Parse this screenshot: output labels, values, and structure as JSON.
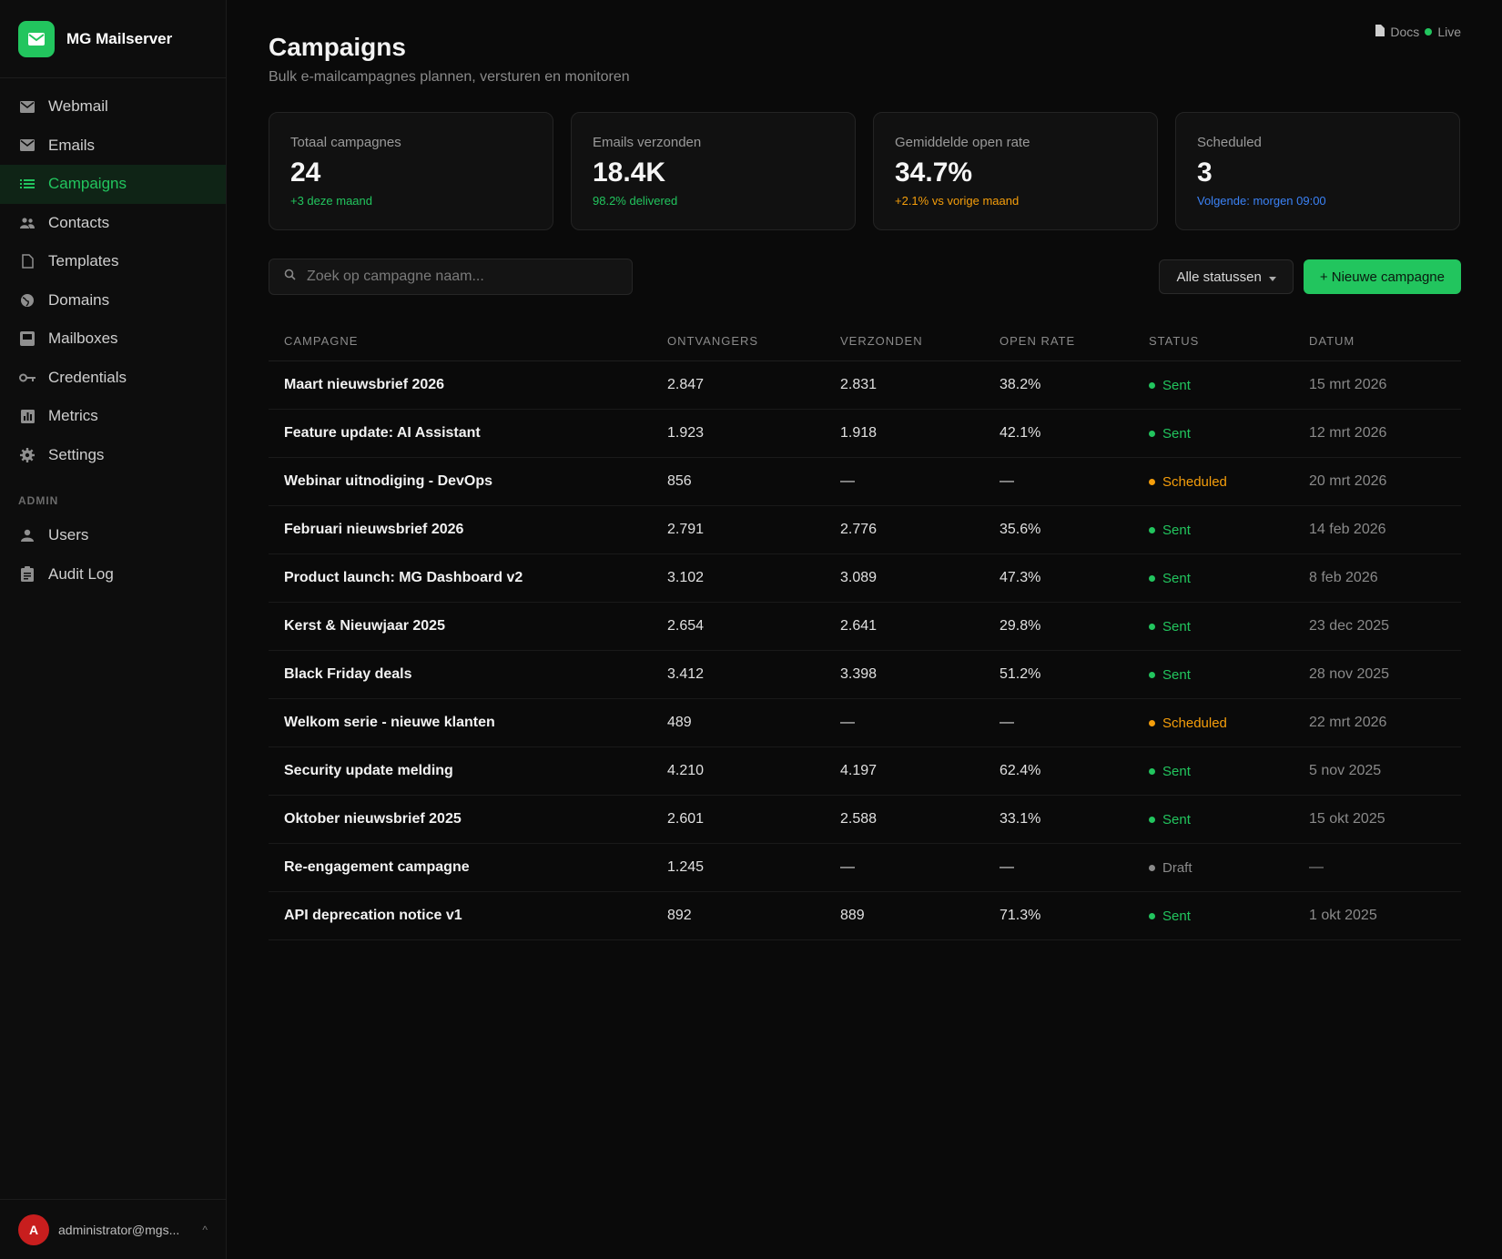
{
  "brand": {
    "title": "MG Mailserver"
  },
  "sidebar": {
    "items": [
      {
        "label": "Webmail",
        "icon": "mail-icon"
      },
      {
        "label": "Emails",
        "icon": "mail-icon"
      },
      {
        "label": "Campaigns",
        "icon": "list-icon",
        "active": true
      },
      {
        "label": "Contacts",
        "icon": "users-icon"
      },
      {
        "label": "Templates",
        "icon": "file-icon"
      },
      {
        "label": "Domains",
        "icon": "globe-icon"
      },
      {
        "label": "Mailboxes",
        "icon": "inbox-icon"
      },
      {
        "label": "Credentials",
        "icon": "key-icon"
      },
      {
        "label": "Metrics",
        "icon": "bar-chart-icon"
      },
      {
        "label": "Settings",
        "icon": "gear-icon"
      }
    ],
    "admin_section": "ADMIN",
    "admin_items": [
      {
        "label": "Users",
        "icon": "user-icon"
      },
      {
        "label": "Audit Log",
        "icon": "clipboard-icon"
      }
    ],
    "user": {
      "initial": "A",
      "email": "administrator@mgs...",
      "caret": "^"
    }
  },
  "header": {
    "title": "Campaigns",
    "subtitle": "Bulk e-mailcampagnes plannen, versturen en monitoren",
    "docs_label": "Docs",
    "live_label": "Live"
  },
  "stats": [
    {
      "label": "Totaal campagnes",
      "value": "24",
      "note": "+3 deze maand",
      "note_color": "#22c55e"
    },
    {
      "label": "Emails verzonden",
      "value": "18.4K",
      "note": "98.2% delivered",
      "note_color": "#22c55e"
    },
    {
      "label": "Gemiddelde open rate",
      "value": "34.7%",
      "note": "+2.1% vs vorige maand",
      "note_color": "#f59e0b"
    },
    {
      "label": "Scheduled",
      "value": "3",
      "note": "Volgende: morgen 09:00",
      "note_color": "#3b82f6"
    }
  ],
  "toolbar": {
    "search_placeholder": "Zoek op campagne naam...",
    "status_filter": "Alle statussen",
    "new_button": "+ Nieuwe campagne"
  },
  "table": {
    "headers": [
      "CAMPAGNE",
      "ONTVANGERS",
      "VERZONDEN",
      "OPEN RATE",
      "STATUS",
      "DATUM"
    ],
    "rows": [
      {
        "name": "Maart nieuwsbrief 2026",
        "recipients": "2.847",
        "sent": "2.831",
        "open_rate": "38.2%",
        "status": "Sent",
        "date": "15 mrt 2026"
      },
      {
        "name": "Feature update: AI Assistant",
        "recipients": "1.923",
        "sent": "1.918",
        "open_rate": "42.1%",
        "status": "Sent",
        "date": "12 mrt 2026"
      },
      {
        "name": "Webinar uitnodiging - DevOps",
        "recipients": "856",
        "sent": "—",
        "open_rate": "—",
        "status": "Scheduled",
        "date": "20 mrt 2026"
      },
      {
        "name": "Februari nieuwsbrief 2026",
        "recipients": "2.791",
        "sent": "2.776",
        "open_rate": "35.6%",
        "status": "Sent",
        "date": "14 feb 2026"
      },
      {
        "name": "Product launch: MG Dashboard v2",
        "recipients": "3.102",
        "sent": "3.089",
        "open_rate": "47.3%",
        "status": "Sent",
        "date": "8 feb 2026"
      },
      {
        "name": "Kerst & Nieuwjaar 2025",
        "recipients": "2.654",
        "sent": "2.641",
        "open_rate": "29.8%",
        "status": "Sent",
        "date": "23 dec 2025"
      },
      {
        "name": "Black Friday deals",
        "recipients": "3.412",
        "sent": "3.398",
        "open_rate": "51.2%",
        "status": "Sent",
        "date": "28 nov 2025"
      },
      {
        "name": "Welkom serie - nieuwe klanten",
        "recipients": "489",
        "sent": "—",
        "open_rate": "—",
        "status": "Scheduled",
        "date": "22 mrt 2026"
      },
      {
        "name": "Security update melding",
        "recipients": "4.210",
        "sent": "4.197",
        "open_rate": "62.4%",
        "status": "Sent",
        "date": "5 nov 2025"
      },
      {
        "name": "Oktober nieuwsbrief 2025",
        "recipients": "2.601",
        "sent": "2.588",
        "open_rate": "33.1%",
        "status": "Sent",
        "date": "15 okt 2025"
      },
      {
        "name": "Re-engagement campagne",
        "recipients": "1.245",
        "sent": "—",
        "open_rate": "—",
        "status": "Draft",
        "date": "—"
      },
      {
        "name": "API deprecation notice v1",
        "recipients": "892",
        "sent": "889",
        "open_rate": "71.3%",
        "status": "Sent",
        "date": "1 okt 2025"
      }
    ]
  },
  "status_colors": {
    "Sent": "#22c55e",
    "Scheduled": "#f59e0b",
    "Draft": "#8a8a8a"
  }
}
